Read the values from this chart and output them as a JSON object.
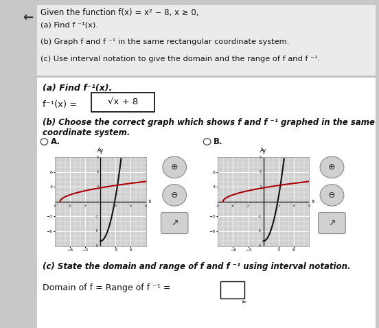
{
  "page_bg": "#c8c8c8",
  "content_bg": "#f0f0f0",
  "white_panel_bg": "#f5f5f5",
  "top_section_bg": "#e8e8e8",
  "separator_color": "#bbbbbb",
  "title": "Given the function f(x) = x² − 8, x ≥ 0,",
  "intro_lines": [
    "(a) Find f ⁻¹(x).",
    "(b) Graph f and f ⁻¹ in the same rectangular coordinate system.",
    "(c) Use interval notation to give the domain and the range of f and f ⁻¹."
  ],
  "part_a_heading": "(a) Find f ⁻¹(x).",
  "part_a_eq_prefix": "f ⁻¹(x) = ",
  "part_a_eq_answer": "√x + 8",
  "part_b_heading": "(b) Choose the correct graph which shows f and f ⁻¹ graphed in the same coordinate system.",
  "part_c_heading": "(c) State the domain and range of f and f ⁻¹ using interval notation.",
  "part_c_eq": "Domain of f = Range of f ⁻¹ =",
  "f_color": "#111111",
  "finv_color": "#aa0000",
  "graph_bg": "#d0d0d0",
  "graph_grid_color": "#ffffff",
  "icon_bg": "#d0d0d0",
  "icon_border": "#888888"
}
